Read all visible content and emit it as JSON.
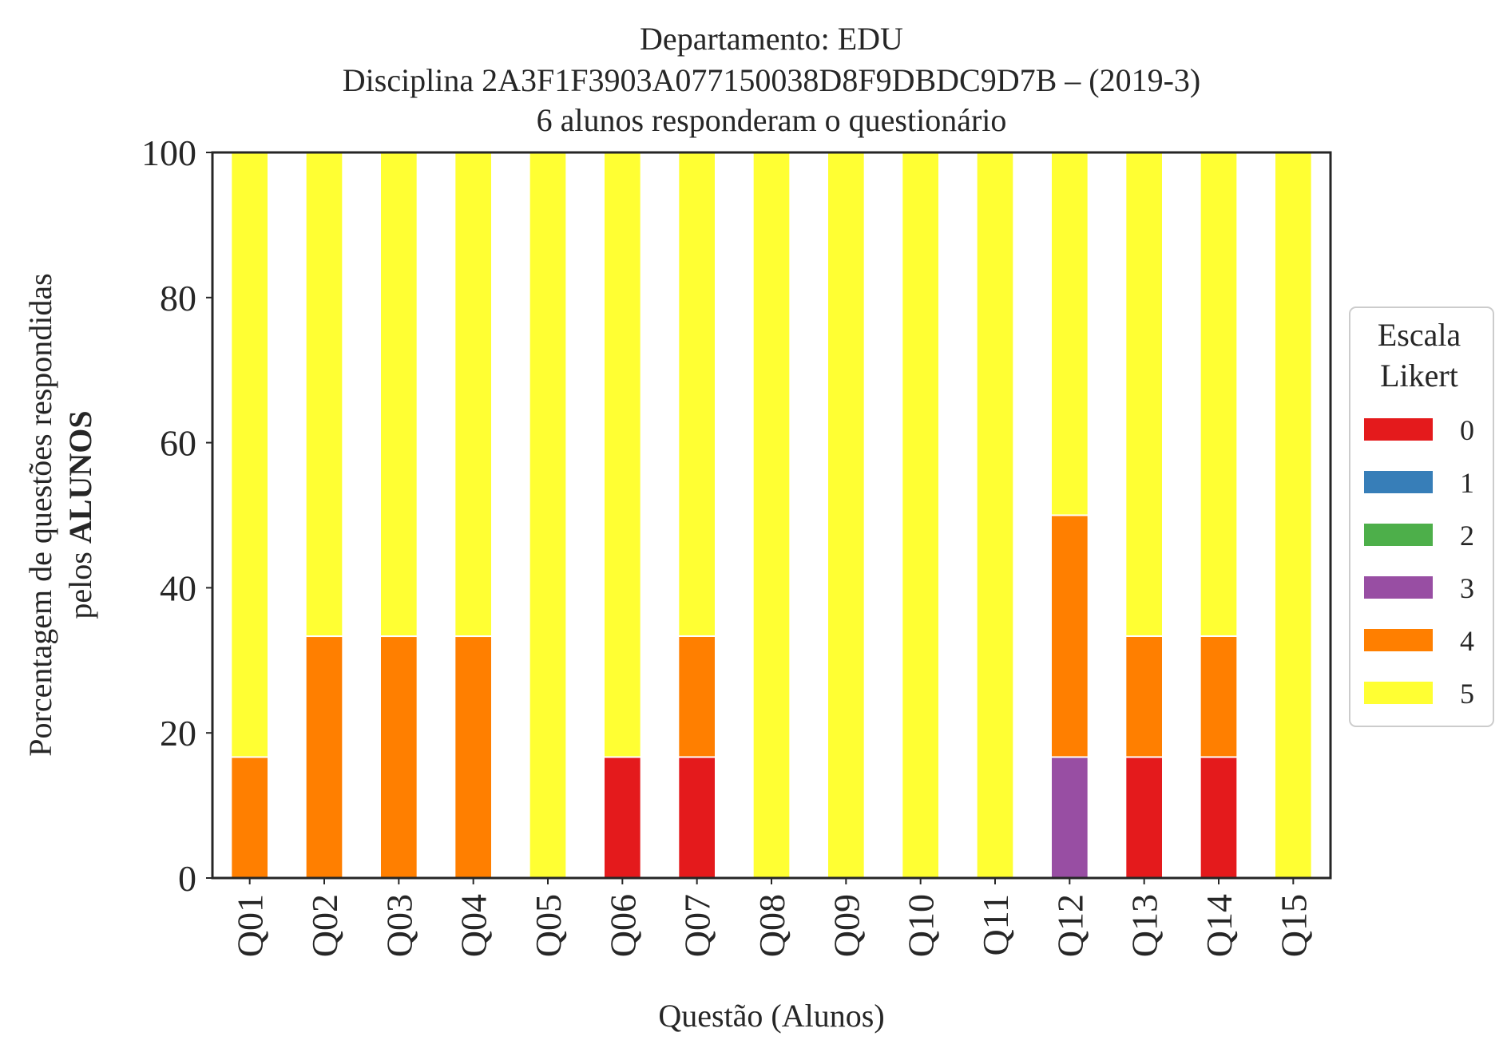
{
  "chart_data": {
    "type": "bar",
    "stacked": true,
    "title_lines": [
      "Departamento: EDU",
      "Disciplina 2A3F1F3903A077150038D8F9DBDC9D7B – (2019-3)",
      "6 alunos responderam o questionário"
    ],
    "xlabel": "Questão (Alunos)",
    "ylabel_line1": "Porcentagem de questões respondidas",
    "ylabel_line2_prefix": "pelos ",
    "ylabel_line2_bold": "ALUNOS",
    "ylim": [
      0,
      100
    ],
    "yticks": [
      "0",
      "20",
      "40",
      "60",
      "80",
      "100"
    ],
    "grid": false,
    "categories": [
      "Q01",
      "Q02",
      "Q03",
      "Q04",
      "Q05",
      "Q06",
      "Q07",
      "Q08",
      "Q09",
      "Q10",
      "Q11",
      "Q12",
      "Q13",
      "Q14",
      "Q15"
    ],
    "series": [
      {
        "name": "0",
        "color": "#e41a1c",
        "values": [
          0,
          0,
          0,
          0,
          0,
          16.67,
          16.67,
          0,
          0,
          0,
          0,
          0,
          16.67,
          16.67,
          0
        ]
      },
      {
        "name": "1",
        "color": "#377eb8",
        "values": [
          0,
          0,
          0,
          0,
          0,
          0,
          0,
          0,
          0,
          0,
          0,
          0,
          0,
          0,
          0
        ]
      },
      {
        "name": "2",
        "color": "#4daf4a",
        "values": [
          0,
          0,
          0,
          0,
          0,
          0,
          0,
          0,
          0,
          0,
          0,
          0,
          0,
          0,
          0
        ]
      },
      {
        "name": "3",
        "color": "#984ea3",
        "values": [
          0,
          0,
          0,
          0,
          0,
          0,
          0,
          0,
          0,
          0,
          0,
          16.67,
          0,
          0,
          0
        ]
      },
      {
        "name": "4",
        "color": "#ff7f00",
        "values": [
          16.67,
          33.33,
          33.33,
          33.33,
          0,
          0,
          16.67,
          0,
          0,
          0,
          0,
          33.33,
          16.67,
          16.67,
          0
        ]
      },
      {
        "name": "5",
        "color": "#ffff33",
        "values": [
          83.33,
          66.67,
          66.67,
          66.67,
          100,
          83.33,
          66.67,
          100,
          100,
          100,
          100,
          50,
          66.67,
          66.67,
          100
        ]
      }
    ],
    "legend": {
      "title_lines": [
        "Escala",
        "Likert"
      ],
      "placement": "center-right outside"
    }
  }
}
